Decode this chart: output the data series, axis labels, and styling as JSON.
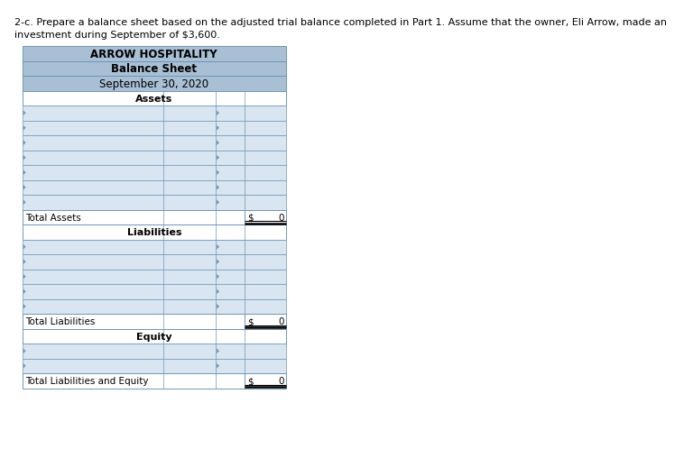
{
  "instruction_line1": "2-c. Prepare a balance sheet based on the adjusted trial balance completed in Part 1. Assume that the owner, Eli Arrow, made an",
  "instruction_line2": "investment during September of $3,600.",
  "company_name": "ARROW HOSPITALITY",
  "sheet_title": "Balance Sheet",
  "sheet_date": "September 30, 2020",
  "header_bg_color": "#a8bfd4",
  "row_bg_color": "#d9e5f0",
  "border_color": "#7096b8",
  "sections": [
    {
      "label": "Assets",
      "num_rows": 7,
      "total_label": "Total Assets",
      "total_value": "0"
    },
    {
      "label": "Liabilities",
      "num_rows": 5,
      "total_label": "Total Liabilities",
      "total_value": "0"
    },
    {
      "label": "Equity",
      "num_rows": 2,
      "total_label": "Total Liabilities and Equity",
      "total_value": "0"
    }
  ],
  "font_size_instr": 8.0,
  "font_size_header": 8.5,
  "font_size_body": 7.5,
  "dollar_sign": "$"
}
